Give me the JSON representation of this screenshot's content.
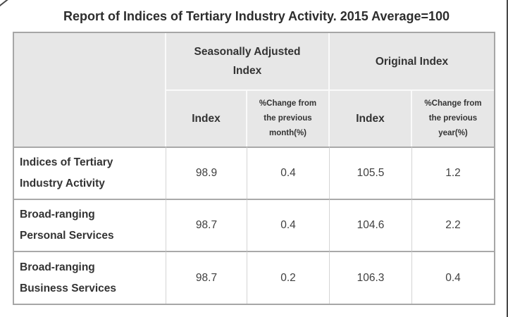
{
  "title": "Report of Indices of Tertiary Industry Activity. 2015 Average=100",
  "table": {
    "column_groups": [
      {
        "label": "Seasonally Adjusted Index"
      },
      {
        "label": "Original Index"
      }
    ],
    "sub_headers": [
      "Index",
      "%Change from the previous month(%)",
      "Index",
      "%Change from the previous year(%)"
    ],
    "rows": [
      {
        "label": "Indices of Tertiary Industry Activity",
        "values": [
          "98.9",
          "0.4",
          "105.5",
          "1.2"
        ]
      },
      {
        "label": "Broad-ranging Personal Services",
        "values": [
          "98.7",
          "0.4",
          "104.6",
          "2.2"
        ]
      },
      {
        "label": "Broad-ranging Business Services",
        "values": [
          "98.7",
          "0.2",
          "106.3",
          "0.4"
        ]
      }
    ]
  },
  "chart_data": {
    "type": "table",
    "title": "Report of Indices of Tertiary Industry Activity. 2015 Average=100",
    "column_groups": [
      "Seasonally Adjusted Index",
      "Original Index"
    ],
    "columns": [
      "Seasonally Adjusted Index - Index",
      "Seasonally Adjusted Index - %Change from the previous month(%)",
      "Original Index - Index",
      "Original Index - %Change from the previous year(%)"
    ],
    "rows": [
      {
        "label": "Indices of Tertiary Industry Activity",
        "values": [
          98.9,
          0.4,
          105.5,
          1.2
        ]
      },
      {
        "label": "Broad-ranging Personal Services",
        "values": [
          98.7,
          0.4,
          104.6,
          2.2
        ]
      },
      {
        "label": "Broad-ranging Business Services",
        "values": [
          98.7,
          0.2,
          106.3,
          0.4
        ]
      }
    ]
  },
  "colors": {
    "header_bg": "#e7e7e7",
    "outer_border": "#a6a6a6",
    "row_divider": "#a9a9a9",
    "body_col_divider": "#d4d4d4",
    "header_divider": "#fafafa",
    "title_text": "#2d2d2d",
    "header_text": "#333333",
    "value_text": "#3f3f3f"
  }
}
